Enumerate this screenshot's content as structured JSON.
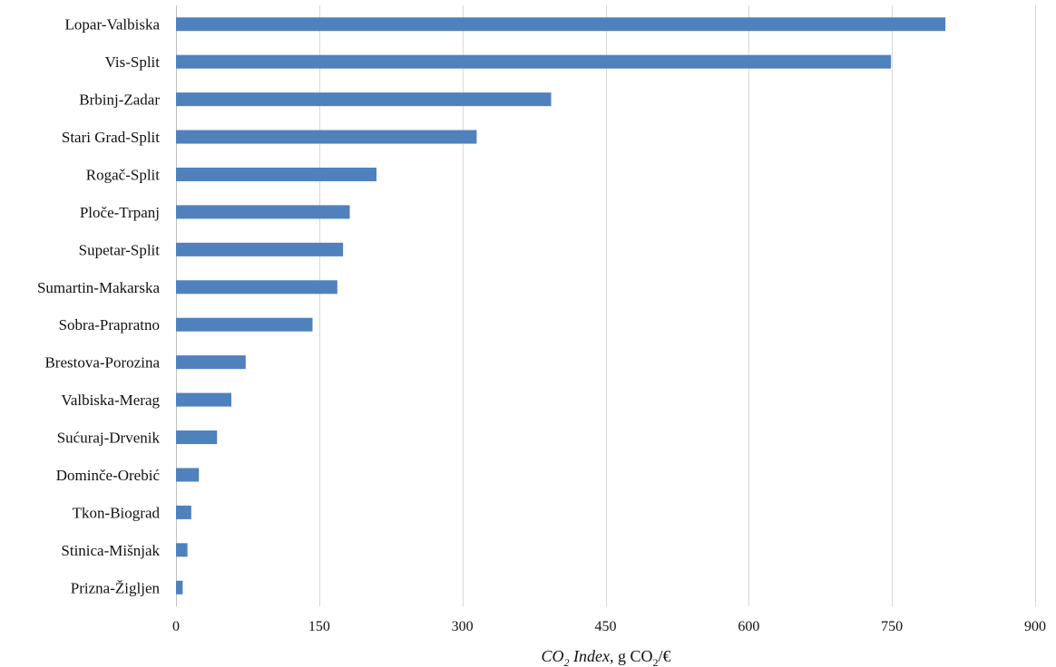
{
  "chart_data": {
    "type": "bar",
    "orientation": "horizontal",
    "categories": [
      "Lopar-Valbiska",
      "Vis-Split",
      "Brbinj-Zadar",
      "Stari Grad-Split",
      "Rogač-Split",
      "Ploče-Trpanj",
      "Supetar-Split",
      "Sumartin-Makarska",
      "Sobra-Prapratno",
      "Brestova-Porozina",
      "Valbiska-Merag",
      "Sućuraj-Drvenik",
      "Dominče-Orebić",
      "Tkon-Biograd",
      "Stinica-Mišnjak",
      "Prizna-Žigljen"
    ],
    "values": [
      806,
      749,
      393,
      315,
      210,
      182,
      175,
      169,
      143,
      73,
      58,
      43,
      24,
      16,
      12,
      7
    ],
    "xlim": [
      0,
      900
    ],
    "xticks": [
      "0",
      "150",
      "300",
      "450",
      "600",
      "750",
      "900"
    ],
    "xlabel": {
      "part1": "CO",
      "part1_sub": "2",
      "part2": " Index",
      "part3": ", g CO",
      "part3_sub": "2",
      "part4": "/€"
    },
    "grid": "vertical",
    "bar_color": "#4f81bd"
  }
}
